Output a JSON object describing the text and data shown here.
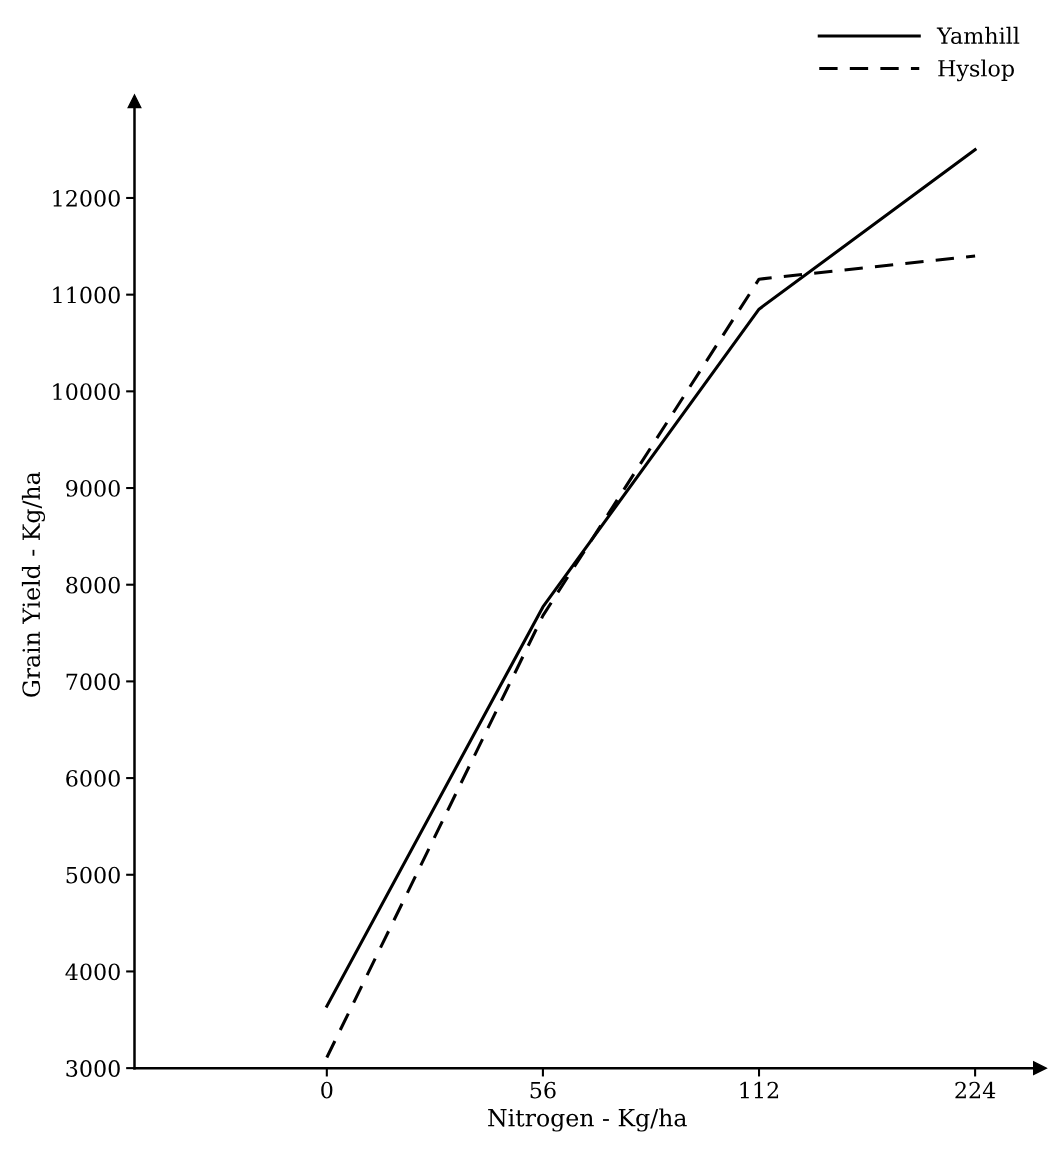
{
  "chart_data": {
    "type": "line",
    "xlabel": "Nitrogen - Kg/ha",
    "ylabel": "Grain Yield - Kg/ha",
    "categories": [
      "0",
      "56",
      "112",
      "224"
    ],
    "series": [
      {
        "name": "Yamhill",
        "color": "#000000",
        "line_style": "solid",
        "values": [
          3640,
          7770,
          10850,
          12500
        ]
      },
      {
        "name": "Hyslop",
        "color": "#000000",
        "line_style": "dashed",
        "values": [
          3110,
          7680,
          11160,
          11400
        ]
      }
    ],
    "ylim": [
      3000,
      13000
    ],
    "yticks": [
      3000,
      4000,
      5000,
      6000,
      7000,
      8000,
      9000,
      10000,
      11000,
      12000
    ],
    "grid": false,
    "legend": "top right",
    "marker": "none"
  }
}
